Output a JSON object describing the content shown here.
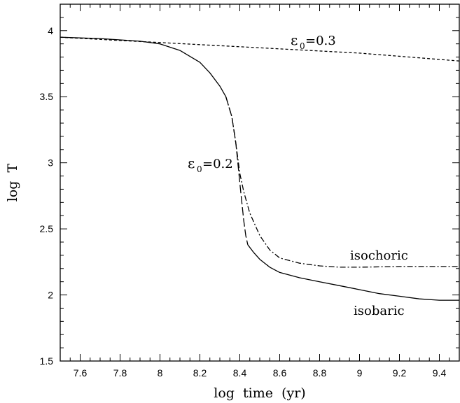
{
  "chart_data": {
    "type": "line",
    "title": "",
    "xlabel": "log  time  (yr)",
    "ylabel": "log  T",
    "xlim": [
      7.5,
      9.5
    ],
    "ylim": [
      1.5,
      4.2
    ],
    "x_ticks": [
      "7.6",
      "7.8",
      "8",
      "8.2",
      "8.4",
      "8.6",
      "8.8",
      "9",
      "9.2",
      "9.4"
    ],
    "y_ticks": [
      "1.5",
      "2",
      "2.5",
      "3",
      "3.5",
      "4"
    ],
    "grid": false,
    "legend": "none",
    "series": [
      {
        "name": "",
        "style": "dashed",
        "x": [
          7.5,
          7.8,
          8.0,
          8.5,
          9.0,
          9.5
        ],
        "y": [
          3.95,
          3.925,
          3.91,
          3.87,
          3.83,
          3.77
        ]
      },
      {
        "name": "",
        "style": "solid",
        "x": [
          7.5,
          7.7,
          7.9,
          8.0,
          8.1,
          8.2,
          8.25,
          8.3,
          8.33
        ],
        "y": [
          3.95,
          3.94,
          3.92,
          3.9,
          3.85,
          3.76,
          3.68,
          3.58,
          3.5
        ]
      },
      {
        "name": "",
        "style": "dash-dot",
        "x": [
          8.33,
          8.36,
          8.38,
          8.4,
          8.42,
          8.45,
          8.5,
          8.55,
          8.6,
          8.7,
          8.8,
          8.9,
          9.0,
          9.2,
          9.4,
          9.5
        ],
        "y": [
          3.5,
          3.35,
          3.15,
          2.92,
          2.78,
          2.62,
          2.45,
          2.34,
          2.28,
          2.24,
          2.22,
          2.21,
          2.21,
          2.215,
          2.215,
          2.215
        ]
      },
      {
        "name": "",
        "style": "long-dashed",
        "x": [
          8.33,
          8.36,
          8.38,
          8.39,
          8.4,
          8.41,
          8.42,
          8.43,
          8.44
        ],
        "y": [
          3.5,
          3.35,
          3.15,
          3.0,
          2.85,
          2.7,
          2.56,
          2.45,
          2.38
        ]
      },
      {
        "name": "",
        "style": "solid",
        "x": [
          8.44,
          8.47,
          8.5,
          8.55,
          8.6,
          8.7,
          8.8,
          8.9,
          9.0,
          9.1,
          9.2,
          9.3,
          9.4,
          9.5
        ],
        "y": [
          2.38,
          2.32,
          2.27,
          2.21,
          2.17,
          2.13,
          2.1,
          2.07,
          2.04,
          2.01,
          1.99,
          1.97,
          1.96,
          1.96
        ]
      }
    ],
    "annotations": {
      "eps_top": {
        "symbol": "ε",
        "subscript": "0",
        "text": "=0.3"
      },
      "eps_mid": {
        "symbol": "ε",
        "subscript": "0",
        "text": "=0.2"
      },
      "isochoric": "isochoric",
      "isobaric": "isobaric"
    }
  }
}
